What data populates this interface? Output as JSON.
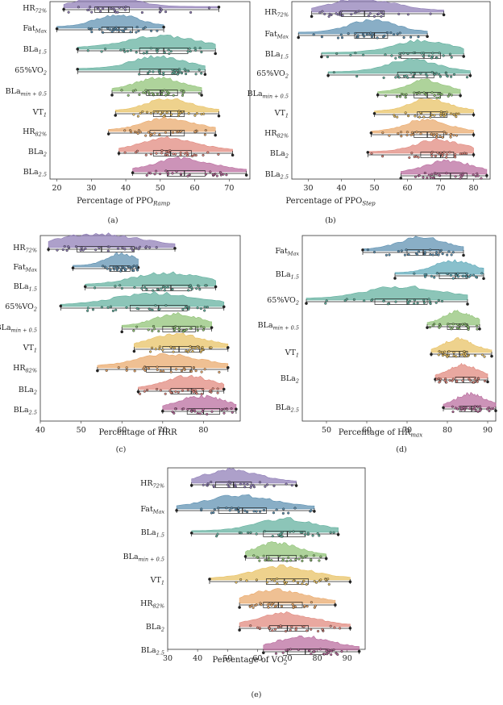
{
  "figure": {
    "colors": {
      "purple": "#8d7bb5",
      "blue": "#5b8fb0",
      "teal": "#5fae9c",
      "green": "#8fc274",
      "yellow": "#e8c061",
      "orange": "#e9a86a",
      "salmon": "#e0877c",
      "magenta": "#b9699c",
      "skyblue": "#5ba8b8"
    }
  },
  "chart_data": [
    {
      "id": "a",
      "type": "raincloud",
      "panel_label": "(a)",
      "xlabel": {
        "main": "Percentage of PPO",
        "sub": "Ramp"
      },
      "xlim": [
        18,
        76
      ],
      "xticks": [
        "20",
        "30",
        "40",
        "50",
        "60",
        "70"
      ],
      "tick_values": [
        20,
        30,
        40,
        50,
        60,
        70
      ],
      "series": [
        {
          "label": {
            "main": "HR",
            "sub": "72%"
          },
          "color": "purple",
          "min": 22,
          "q1": 31,
          "median": 35,
          "q3": 41,
          "max": 67
        },
        {
          "label": {
            "main": "Fat",
            "sub": "Max"
          },
          "color": "blue",
          "min": 20,
          "q1": 33,
          "median": 38,
          "q3": 42,
          "max": 51
        },
        {
          "label": {
            "main": "BLa",
            "sub": "1.5"
          },
          "color": "teal",
          "min": 26,
          "q1": 44,
          "median": 51,
          "q3": 58,
          "max": 66
        },
        {
          "label": {
            "main": "65%VO",
            "sub": "2"
          },
          "color": "teal",
          "min": 26,
          "q1": 44,
          "median": 50,
          "q3": 55,
          "max": 63
        },
        {
          "label": {
            "main": "BLa",
            "sub": "min + 0.5"
          },
          "color": "green",
          "min": 36,
          "q1": 46,
          "median": 50,
          "q3": 55,
          "max": 62
        },
        {
          "label": {
            "main": "VT",
            "sub": "1"
          },
          "color": "yellow",
          "min": 37,
          "q1": 48,
          "median": 53,
          "q3": 57,
          "max": 67
        },
        {
          "label": {
            "main": "HR",
            "sub": "82%"
          },
          "color": "orange",
          "min": 35,
          "q1": 47,
          "median": 53,
          "q3": 57,
          "max": 66
        },
        {
          "label": {
            "main": "BLa",
            "sub": "2"
          },
          "color": "salmon",
          "min": 38,
          "q1": 48,
          "median": 53,
          "q3": 59,
          "max": 71
        },
        {
          "label": {
            "main": "BLa",
            "sub": "2.5"
          },
          "color": "magenta",
          "min": 42,
          "q1": 52,
          "median": 57,
          "q3": 63,
          "max": 75
        }
      ]
    },
    {
      "id": "b",
      "type": "raincloud",
      "panel_label": "(b)",
      "xlabel": {
        "main": "Percentage of PPO",
        "sub": "Step"
      },
      "xlim": [
        25,
        85
      ],
      "xticks": [
        "30",
        "40",
        "50",
        "60",
        "70",
        "80"
      ],
      "tick_values": [
        30,
        40,
        50,
        60,
        70,
        80
      ],
      "series": [
        {
          "label": {
            "main": "HR",
            "sub": "72%"
          },
          "color": "purple",
          "min": 31,
          "q1": 40,
          "median": 47,
          "q3": 53,
          "max": 71
        },
        {
          "label": {
            "main": "Fat",
            "sub": "Max"
          },
          "color": "blue",
          "min": 27,
          "q1": 44,
          "median": 50,
          "q3": 54,
          "max": 66
        },
        {
          "label": {
            "main": "BLa",
            "sub": "1.5"
          },
          "color": "teal",
          "min": 34,
          "q1": 58,
          "median": 65,
          "q3": 70,
          "max": 77
        },
        {
          "label": {
            "main": "65%VO",
            "sub": "2"
          },
          "color": "teal",
          "min": 36,
          "q1": 57,
          "median": 62,
          "q3": 68,
          "max": 79
        },
        {
          "label": {
            "main": "BLa",
            "sub": "min + 0.5"
          },
          "color": "green",
          "min": 51,
          "q1": 62,
          "median": 66,
          "q3": 70,
          "max": 76
        },
        {
          "label": {
            "main": "VT",
            "sub": "1"
          },
          "color": "yellow",
          "min": 50,
          "q1": 63,
          "median": 67,
          "q3": 72,
          "max": 80
        },
        {
          "label": {
            "main": "HR",
            "sub": "82%"
          },
          "color": "orange",
          "min": 49,
          "q1": 62,
          "median": 66,
          "q3": 71,
          "max": 80
        },
        {
          "label": {
            "main": "BLa",
            "sub": "2"
          },
          "color": "salmon",
          "min": 48,
          "q1": 64,
          "median": 70,
          "q3": 74,
          "max": 80
        },
        {
          "label": {
            "main": "BLa",
            "sub": "2.5"
          },
          "color": "magenta",
          "min": 58,
          "q1": 68,
          "median": 73,
          "q3": 78,
          "max": 84
        }
      ]
    },
    {
      "id": "c",
      "type": "raincloud",
      "panel_label": "(c)",
      "xlabel": {
        "main": "Percentage of HRR",
        "sub": ""
      },
      "xlim": [
        40,
        89
      ],
      "xticks": [
        "40",
        "50",
        "60",
        "70",
        "80"
      ],
      "tick_values": [
        40,
        50,
        60,
        70,
        80
      ],
      "series": [
        {
          "label": {
            "main": "HR",
            "sub": "72%"
          },
          "color": "purple",
          "min": 42,
          "q1": 49,
          "median": 55,
          "q3": 63,
          "max": 73
        },
        {
          "label": {
            "main": "Fat",
            "sub": "Max"
          },
          "color": "blue",
          "min": 48,
          "q1": 57,
          "median": 60,
          "q3": 62,
          "max": 64
        },
        {
          "label": {
            "main": "BLa",
            "sub": "1.5"
          },
          "color": "teal",
          "min": 51,
          "q1": 65,
          "median": 72,
          "q3": 77,
          "max": 83
        },
        {
          "label": {
            "main": "65%VO",
            "sub": "2"
          },
          "color": "teal",
          "min": 45,
          "q1": 62,
          "median": 69,
          "q3": 76,
          "max": 85
        },
        {
          "label": {
            "main": "BLa",
            "sub": "min + 0.5"
          },
          "color": "green",
          "min": 60,
          "q1": 70,
          "median": 74,
          "q3": 78,
          "max": 82
        },
        {
          "label": {
            "main": "VT",
            "sub": "1"
          },
          "color": "yellow",
          "min": 63,
          "q1": 70,
          "median": 74,
          "q3": 79,
          "max": 86
        },
        {
          "label": {
            "main": "HR",
            "sub": "82%"
          },
          "color": "orange",
          "min": 54,
          "q1": 66,
          "median": 72,
          "q3": 77,
          "max": 86
        },
        {
          "label": {
            "main": "BLa",
            "sub": "2"
          },
          "color": "salmon",
          "min": 64,
          "q1": 72,
          "median": 77,
          "q3": 80,
          "max": 85
        },
        {
          "label": {
            "main": "BLa",
            "sub": "2.5"
          },
          "color": "magenta",
          "min": 70,
          "q1": 76,
          "median": 80,
          "q3": 84,
          "max": 88
        }
      ]
    },
    {
      "id": "d",
      "type": "raincloud",
      "panel_label": "(d)",
      "xlabel": {
        "main": "Percentage of HR",
        "sub": "max"
      },
      "xlim": [
        44,
        92
      ],
      "xticks": [
        "50",
        "60",
        "70",
        "80",
        "90"
      ],
      "tick_values": [
        50,
        60,
        70,
        80,
        90
      ],
      "series": [
        {
          "label": {
            "main": "Fat",
            "sub": "Max"
          },
          "color": "blue",
          "min": 59,
          "q1": 70,
          "median": 74,
          "q3": 78,
          "max": 84
        },
        {
          "label": {
            "main": "BLa",
            "sub": "1.5"
          },
          "color": "skyblue",
          "min": 67,
          "q1": 78,
          "median": 82,
          "q3": 85,
          "max": 89
        },
        {
          "label": {
            "main": "65%VO",
            "sub": "2"
          },
          "color": "teal",
          "min": 45,
          "q1": 62,
          "median": 70,
          "q3": 75,
          "max": 85
        },
        {
          "label": {
            "main": "BLa",
            "sub": "min + 0.5"
          },
          "color": "green",
          "min": 75,
          "q1": 80,
          "median": 83,
          "q3": 85,
          "max": 88
        },
        {
          "label": {
            "main": "VT",
            "sub": "1"
          },
          "color": "yellow",
          "min": 76,
          "q1": 80,
          "median": 83,
          "q3": 85,
          "max": 91
        },
        {
          "label": {
            "main": "BLa",
            "sub": "2"
          },
          "color": "salmon",
          "min": 77,
          "q1": 82,
          "median": 84,
          "q3": 87,
          "max": 90
        },
        {
          "label": {
            "main": "BLa",
            "sub": "2.5"
          },
          "color": "magenta",
          "min": 79,
          "q1": 83,
          "median": 86,
          "q3": 88,
          "max": 92
        }
      ]
    },
    {
      "id": "e",
      "type": "raincloud",
      "panel_label": "(e)",
      "xlabel": {
        "main": "Percentage of VO",
        "sub": "2"
      },
      "xlim": [
        30,
        96
      ],
      "xticks": [
        "30",
        "40",
        "50",
        "60",
        "70",
        "80",
        "90"
      ],
      "tick_values": [
        30,
        40,
        50,
        60,
        70,
        80,
        90
      ],
      "series": [
        {
          "label": {
            "main": "HR",
            "sub": "72%"
          },
          "color": "purple",
          "min": 38,
          "q1": 46,
          "median": 52,
          "q3": 58,
          "max": 73
        },
        {
          "label": {
            "main": "Fat",
            "sub": "Max"
          },
          "color": "blue",
          "min": 33,
          "q1": 47,
          "median": 55,
          "q3": 63,
          "max": 79
        },
        {
          "label": {
            "main": "BLa",
            "sub": "1.5"
          },
          "color": "teal",
          "min": 38,
          "q1": 62,
          "median": 70,
          "q3": 76,
          "max": 87
        },
        {
          "label": {
            "main": "BLa",
            "sub": "min + 0.5"
          },
          "color": "green",
          "min": 56,
          "q1": 63,
          "median": 67,
          "q3": 73,
          "max": 83
        },
        {
          "label": {
            "main": "VT",
            "sub": "1"
          },
          "color": "yellow",
          "min": 44,
          "q1": 63,
          "median": 69,
          "q3": 77,
          "max": 91
        },
        {
          "label": {
            "main": "HR",
            "sub": "82%"
          },
          "color": "orange",
          "min": 54,
          "q1": 62,
          "median": 67,
          "q3": 75,
          "max": 86
        },
        {
          "label": {
            "main": "BLa",
            "sub": "2"
          },
          "color": "salmon",
          "min": 54,
          "q1": 64,
          "median": 70,
          "q3": 77,
          "max": 91
        },
        {
          "label": {
            "main": "BLa",
            "sub": "2.5"
          },
          "color": "magenta",
          "min": 62,
          "q1": 70,
          "median": 76,
          "q3": 83,
          "max": 94
        }
      ]
    }
  ]
}
